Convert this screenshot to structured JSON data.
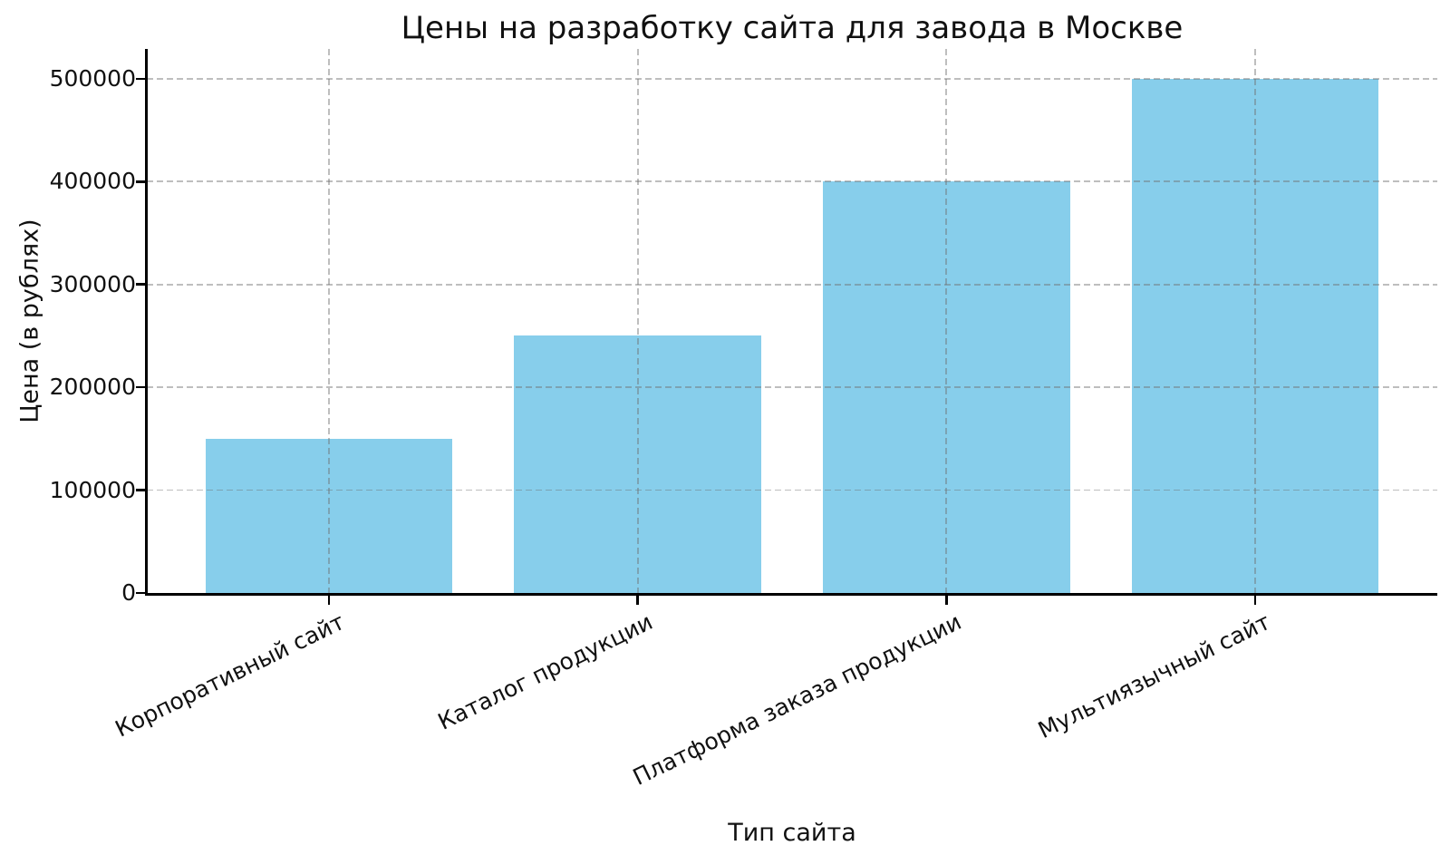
{
  "figure": {
    "background": "#ffffff",
    "text_color": "#111111",
    "axis_color": "#000000"
  },
  "chart_data": {
    "type": "bar",
    "title": "Цены на разработку сайта для завода в Москве",
    "xlabel": "Тип сайта",
    "ylabel": "Цена (в рублях)",
    "categories": [
      "Корпоративный сайт",
      "Каталог продукции",
      "Платформа заказа продукции",
      "Мультиязычный сайт"
    ],
    "values": [
      150000,
      250000,
      400000,
      500000
    ],
    "bar_color": "#87CEEB",
    "bar_width": 0.8,
    "y_ticks": [
      0,
      100000,
      200000,
      300000,
      400000,
      500000
    ],
    "ylim": [
      0,
      529000
    ],
    "xlim": [
      -0.59,
      3.59
    ],
    "grid": true,
    "grid_linestyle": "dashed",
    "grid_color": "rgba(110,110,110,0.45)",
    "grid_over_bars": true,
    "x_tick_rotation_deg": 26,
    "legend": "none"
  }
}
